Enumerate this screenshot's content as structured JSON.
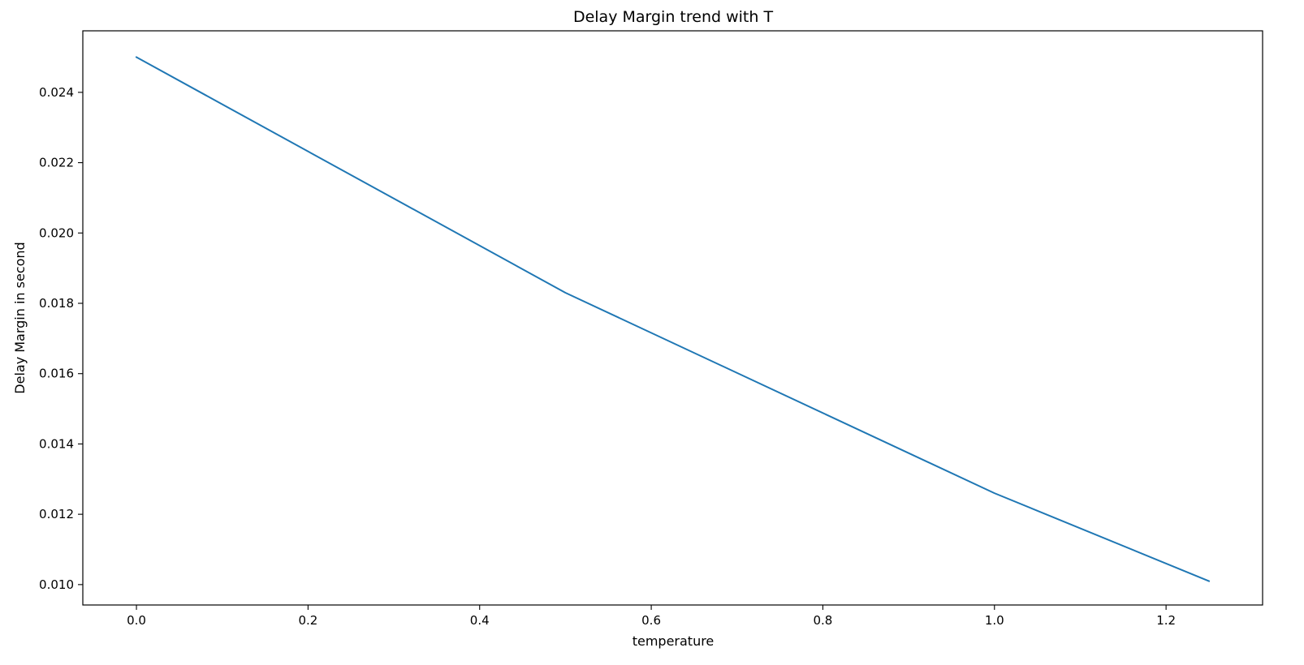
{
  "chart_data": {
    "type": "line",
    "title": "Delay Margin trend with T",
    "xlabel": "temperature",
    "ylabel": "Delay Margin in second",
    "xlim": [
      -0.0625,
      1.3125
    ],
    "ylim": [
      0.00942,
      0.02575
    ],
    "xticks": [
      0.0,
      0.2,
      0.4,
      0.6,
      0.8,
      1.0,
      1.2
    ],
    "xtick_labels": [
      "0.0",
      "0.2",
      "0.4",
      "0.6",
      "0.8",
      "1.0",
      "1.2"
    ],
    "yticks": [
      0.01,
      0.012,
      0.014,
      0.016,
      0.018,
      0.02,
      0.022,
      0.024
    ],
    "ytick_labels": [
      "0.010",
      "0.012",
      "0.014",
      "0.016",
      "0.018",
      "0.020",
      "0.022",
      "0.024"
    ],
    "grid": false,
    "series": [
      {
        "color": "#1f77b4",
        "x": [
          0.0,
          0.5,
          1.0,
          1.25
        ],
        "y": [
          0.025,
          0.0183,
          0.0126,
          0.0101
        ]
      }
    ]
  }
}
